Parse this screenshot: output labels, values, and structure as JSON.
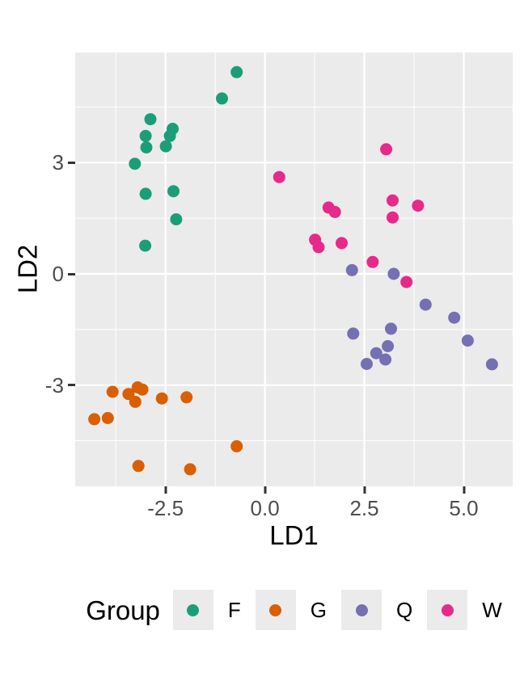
{
  "chart_data": {
    "type": "scatter",
    "title": "",
    "xlabel": "LD1",
    "ylabel": "LD2",
    "legend_title": "Group",
    "legend_position": "bottom",
    "grid": true,
    "x_range": [
      -4.77,
      6.23
    ],
    "y_range": [
      -5.73,
      5.97
    ],
    "x_ticks": {
      "major": [
        -2.5,
        0,
        2.5,
        5
      ],
      "major_labels": [
        "-2.5",
        "0.0",
        "2.5",
        "5.0"
      ],
      "minor": [
        -3.75,
        -1.25,
        1.25,
        3.75
      ]
    },
    "y_ticks": {
      "major": [
        3,
        0,
        -3
      ],
      "major_labels": [
        "3",
        "0",
        "-3"
      ],
      "minor": [
        4.5,
        1.5,
        -1.5,
        -4.5
      ]
    },
    "point_radius": 7.5,
    "series": [
      {
        "name": "F",
        "color": "#1B9E77",
        "points": [
          [
            -0.71,
            5.44
          ],
          [
            -1.08,
            4.73
          ],
          [
            -2.88,
            4.17
          ],
          [
            -2.32,
            3.91
          ],
          [
            -2.39,
            3.72
          ],
          [
            -3.0,
            3.72
          ],
          [
            -2.98,
            3.41
          ],
          [
            -2.49,
            3.44
          ],
          [
            -3.27,
            2.97
          ],
          [
            -3.0,
            2.16
          ],
          [
            -2.3,
            2.23
          ],
          [
            -2.23,
            1.47
          ],
          [
            -3.01,
            0.76
          ]
        ]
      },
      {
        "name": "G",
        "color": "#D95F02",
        "points": [
          [
            -3.83,
            -3.18
          ],
          [
            -3.43,
            -3.24
          ],
          [
            -3.2,
            -3.06
          ],
          [
            -3.08,
            -3.12
          ],
          [
            -3.26,
            -3.45
          ],
          [
            -2.59,
            -3.36
          ],
          [
            -1.97,
            -3.33
          ],
          [
            -4.29,
            -3.92
          ],
          [
            -3.95,
            -3.89
          ],
          [
            -0.71,
            -4.65
          ],
          [
            -3.18,
            -5.18
          ],
          [
            -1.88,
            -5.27
          ]
        ]
      },
      {
        "name": "Q",
        "color": "#7570B3",
        "points": [
          [
            2.19,
            0.1
          ],
          [
            3.24,
            0.0
          ],
          [
            4.04,
            -0.83
          ],
          [
            4.76,
            -1.18
          ],
          [
            5.1,
            -1.8
          ],
          [
            2.22,
            -1.61
          ],
          [
            3.17,
            -1.48
          ],
          [
            3.09,
            -1.95
          ],
          [
            2.8,
            -2.14
          ],
          [
            3.03,
            -2.31
          ],
          [
            2.56,
            -2.43
          ],
          [
            5.71,
            -2.44
          ]
        ]
      },
      {
        "name": "W",
        "color": "#E7298A",
        "points": [
          [
            3.05,
            3.36
          ],
          [
            0.36,
            2.61
          ],
          [
            1.6,
            1.79
          ],
          [
            1.76,
            1.67
          ],
          [
            3.21,
            1.98
          ],
          [
            3.85,
            1.84
          ],
          [
            3.21,
            1.52
          ],
          [
            1.26,
            0.92
          ],
          [
            1.35,
            0.72
          ],
          [
            1.93,
            0.83
          ],
          [
            2.71,
            0.32
          ],
          [
            3.56,
            -0.22
          ]
        ]
      }
    ]
  },
  "style_colors": {
    "page_background": "#FFFFFF",
    "panel_background": "#EBEBEB",
    "grid_line": "#FFFFFF",
    "tick_mark": "#333333",
    "tick_label": "#4D4D4D",
    "axis_title": "#000000",
    "legend_key_background": "#EBEBEB",
    "legend_label": "#000000"
  }
}
